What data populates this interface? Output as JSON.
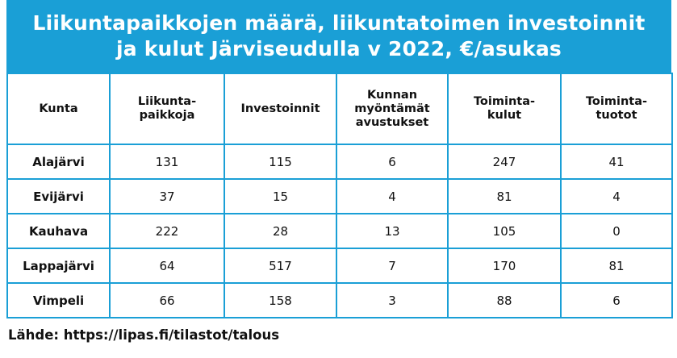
{
  "title": {
    "line1": "Liikuntapaikkojen määrä, liikuntatoimen investoinnit",
    "line2": "ja kulut Järviseudulla v 2022, €/asukas"
  },
  "table": {
    "headers": [
      [
        "Kunta"
      ],
      [
        "Liikunta-",
        "paikkoja"
      ],
      [
        "Investoinnit"
      ],
      [
        "Kunnan",
        "myöntämät",
        "avustukset"
      ],
      [
        "Toiminta-",
        "kulut"
      ],
      [
        "Toiminta-",
        "tuotot"
      ]
    ],
    "rows": [
      [
        "Alajärvi",
        "131",
        "115",
        "6",
        "247",
        "41"
      ],
      [
        "Evijärvi",
        "37",
        "15",
        "4",
        "81",
        "4"
      ],
      [
        "Kauhava",
        "222",
        "28",
        "13",
        "105",
        "0"
      ],
      [
        "Lappajärvi",
        "64",
        "517",
        "7",
        "170",
        "81"
      ],
      [
        "Vimpeli",
        "66",
        "158",
        "3",
        "88",
        "6"
      ]
    ]
  },
  "source": "Lähde: https://lipas.fi/tilastot/talous",
  "colors": {
    "accent": "#1a9fd6"
  }
}
